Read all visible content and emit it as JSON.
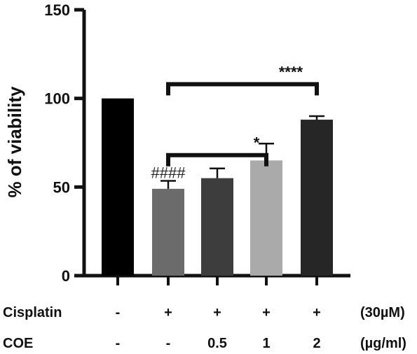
{
  "chart_data": {
    "type": "bar",
    "ylabel": "% of viability",
    "ylim": [
      0,
      150
    ],
    "yticks": [
      "0",
      "50",
      "100",
      "150"
    ],
    "grid": false,
    "bars": [
      {
        "value": 100,
        "error": 0,
        "color": "#000000"
      },
      {
        "value": 49,
        "error": 4.5,
        "color": "#6b6b6b"
      },
      {
        "value": 55,
        "error": 5.5,
        "color": "#3d3d3d"
      },
      {
        "value": 65,
        "error": 9.5,
        "color": "#aaaaaa"
      },
      {
        "value": 88,
        "error": 2,
        "color": "#262626"
      }
    ],
    "conditions": [
      {
        "name": "Cisplatin",
        "values": [
          "-",
          "+",
          "+",
          "+",
          "+"
        ],
        "unit": "(30µM)"
      },
      {
        "name": "COE",
        "values": [
          "-",
          "-",
          "0.5",
          "1",
          "2"
        ],
        "unit": "(µg/ml)"
      }
    ],
    "annotations": {
      "hash": {
        "bar": 1,
        "text": "####"
      },
      "brackets": [
        {
          "from": 1,
          "to": 3,
          "y": 68,
          "text": "*"
        },
        {
          "from": 1,
          "to": 4,
          "y": 108,
          "text": "****"
        }
      ]
    }
  }
}
